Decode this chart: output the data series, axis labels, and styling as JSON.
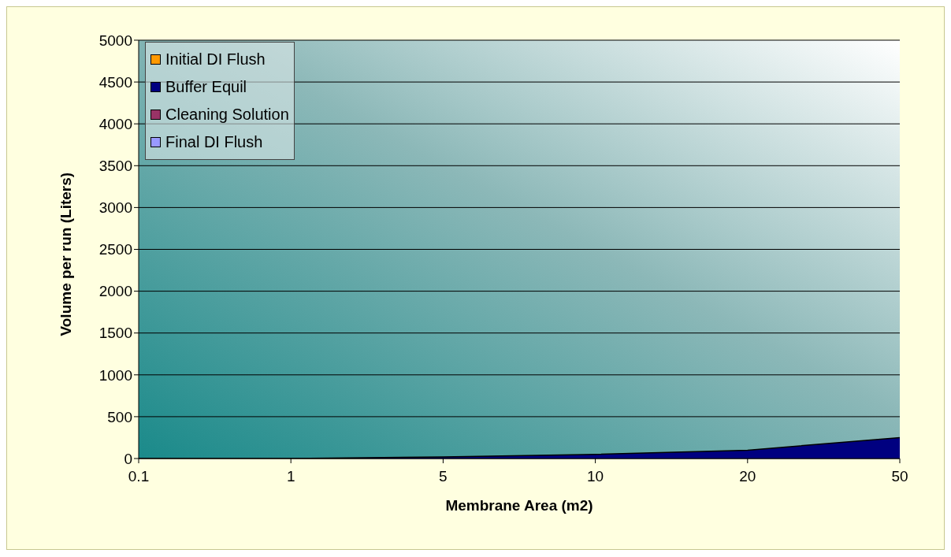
{
  "chart_data": {
    "type": "area",
    "xlabel": "Membrane Area (m2)",
    "ylabel": "Volume per run (Liters)",
    "categories": [
      "0.1",
      "1",
      "5",
      "10",
      "20",
      "50"
    ],
    "series": [
      {
        "name": "Initial DI Flush",
        "color": "#ff9900",
        "values": [
          null,
          null,
          null,
          null,
          null,
          null
        ]
      },
      {
        "name": "Buffer Equil",
        "color": "#000080",
        "values": [
          0,
          0,
          20,
          50,
          100,
          250
        ]
      },
      {
        "name": "Cleaning Solution",
        "color": "#993366",
        "values": [
          null,
          null,
          null,
          null,
          null,
          null
        ]
      },
      {
        "name": "Final DI Flush",
        "color": "#9999ff",
        "values": [
          null,
          null,
          null,
          null,
          null,
          null
        ]
      }
    ],
    "ylim": [
      0,
      5000
    ],
    "yticks": [
      0,
      500,
      1000,
      1500,
      2000,
      2500,
      3000,
      3500,
      4000,
      4500,
      5000
    ],
    "grid": "y",
    "legend": "top left"
  }
}
